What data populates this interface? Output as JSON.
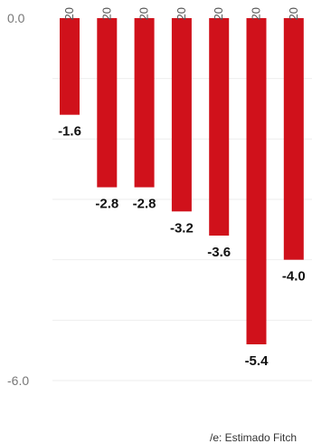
{
  "chart_data": {
    "type": "bar",
    "categories": [
      "20",
      "20",
      "20",
      "20",
      "20",
      "20",
      "20"
    ],
    "values": [
      -1.6,
      -2.8,
      -2.8,
      -3.2,
      -3.6,
      -5.4,
      -4.0
    ],
    "value_labels": [
      "-1.6",
      "-2.8",
      "-2.8",
      "-3.2",
      "-3.6",
      "-5.4",
      "-4.0"
    ],
    "yticks": [
      {
        "value": 0,
        "label": "0.0"
      },
      {
        "value": -6,
        "label": "-6.0"
      }
    ],
    "ylim": [
      -6,
      0
    ],
    "gridlines": [
      -1,
      -2,
      -3,
      -4,
      -5,
      -6
    ],
    "grid": true,
    "bar_color": "#d0111b",
    "title": "",
    "xlabel": "",
    "ylabel": ""
  },
  "footnote": "/e: Estimado Fitch"
}
